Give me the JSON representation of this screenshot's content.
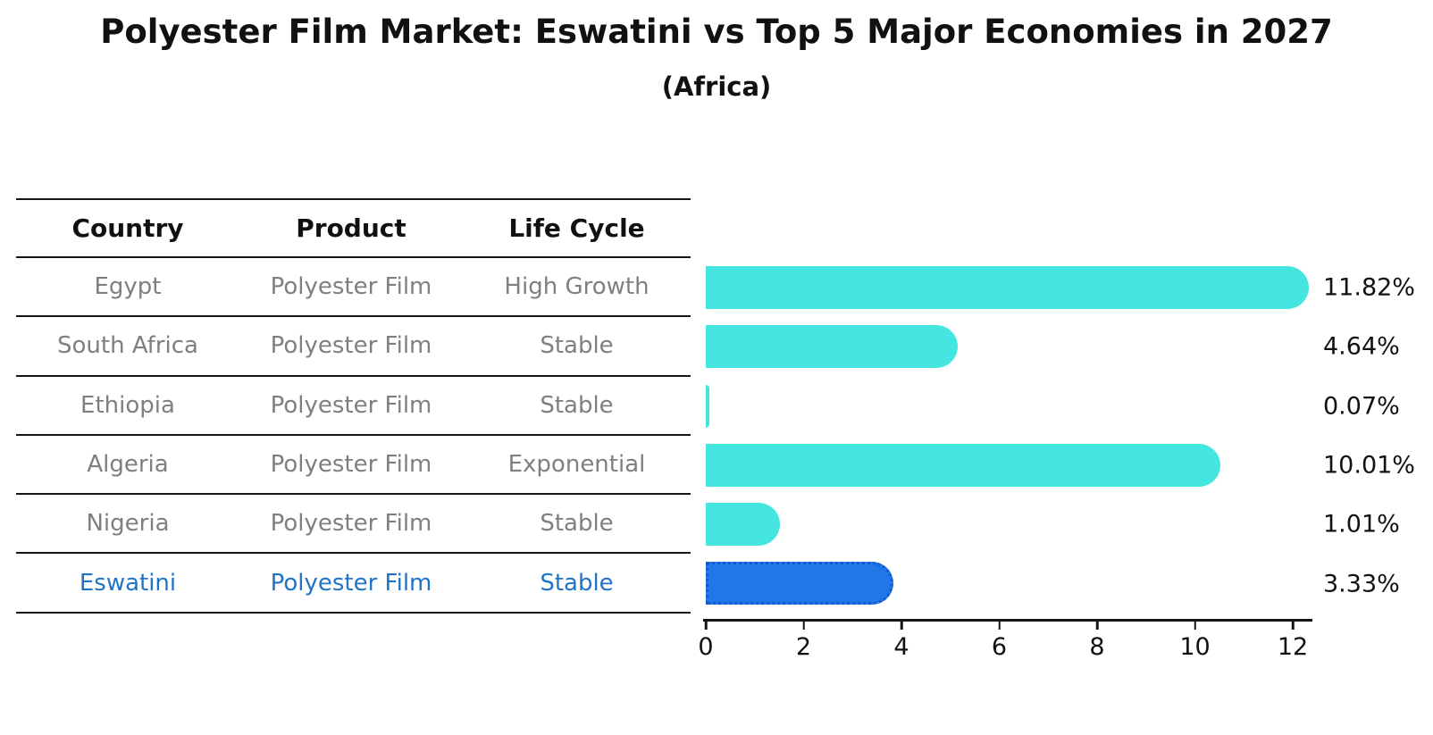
{
  "chart_data": {
    "type": "bar",
    "orientation": "horizontal",
    "title": "Polyester Film Market: Eswatini vs Top 5 Major Economies in 2027",
    "subtitle": "(Africa)",
    "columns": [
      "Country",
      "Product",
      "Life Cycle"
    ],
    "rows": [
      {
        "country": "Egypt",
        "product": "Polyester Film",
        "life_cycle": "High Growth",
        "value": 11.82,
        "value_label": "11.82%",
        "highlight": false
      },
      {
        "country": "South Africa",
        "product": "Polyester Film",
        "life_cycle": "Stable",
        "value": 4.64,
        "value_label": "4.64%",
        "highlight": false
      },
      {
        "country": "Ethiopia",
        "product": "Polyester Film",
        "life_cycle": "Stable",
        "value": 0.07,
        "value_label": "0.07%",
        "highlight": false
      },
      {
        "country": "Algeria",
        "product": "Polyester Film",
        "life_cycle": "Exponential",
        "value": 10.01,
        "value_label": "10.01%",
        "highlight": false
      },
      {
        "country": "Nigeria",
        "product": "Polyester Film",
        "life_cycle": "Stable",
        "value": 1.01,
        "value_label": "1.01%",
        "highlight": false
      },
      {
        "country": "Eswatini",
        "product": "Polyester Film",
        "life_cycle": "Stable",
        "value": 3.33,
        "value_label": "3.33%",
        "highlight": true
      }
    ],
    "xticks": [
      0,
      2,
      4,
      6,
      8,
      10,
      12
    ],
    "xlim": [
      0,
      12.42
    ],
    "grid": false,
    "legend": false,
    "colors": {
      "bar_color": "#46e6e0",
      "highlight_bar_color": "#2277e8",
      "highlight_bar_edge_color": "#1559cf",
      "highlight_text_color": "#1f74c8",
      "table_text_color": "#7f7f7f",
      "header_text_color": "#111111",
      "axis_color": "#151515"
    }
  }
}
